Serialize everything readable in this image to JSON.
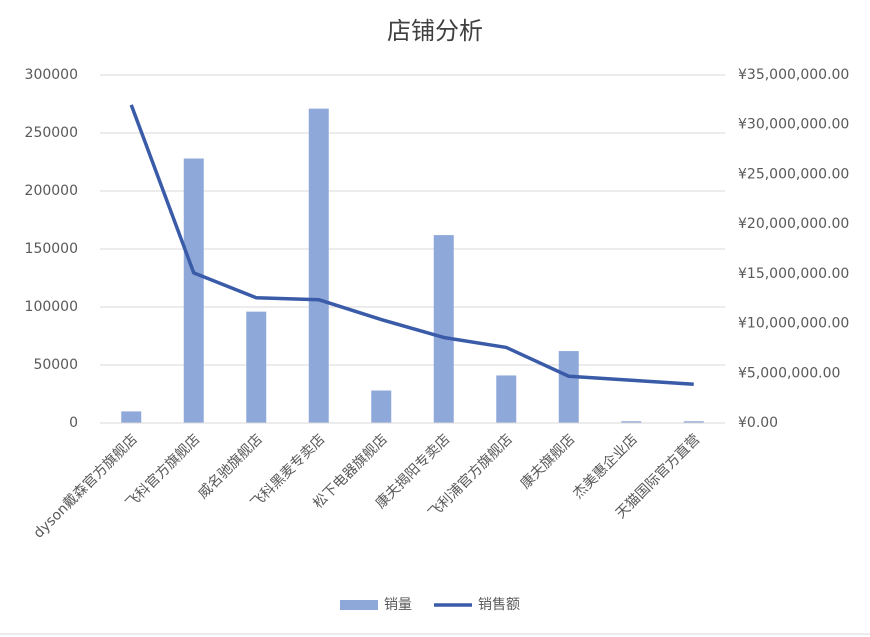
{
  "chart_data": {
    "type": "combo",
    "title": "店铺分析",
    "categories": [
      "dyson戴森官方旗舰店",
      "飞科官方旗舰店",
      "威名驰旗舰店",
      "飞科黑麦专卖店",
      "松下电器旗舰店",
      "康夫揭阳专卖店",
      "飞利浦官方旗舰店",
      "康夫旗舰店",
      "杰美惠企业店",
      "天猫国际官方直营"
    ],
    "series": [
      {
        "name": "销量",
        "type": "bar",
        "color": "#8fa8da",
        "values": [
          10000,
          228000,
          96000,
          271000,
          28000,
          162000,
          41000,
          62000,
          1500,
          1500
        ]
      },
      {
        "name": "销售额",
        "type": "line",
        "axis": "y2",
        "color": "#3a5ba8",
        "values": [
          32000000,
          15100000,
          12600000,
          12400000,
          10400000,
          8600000,
          7600000,
          4700000,
          4300000,
          3900000
        ]
      }
    ],
    "ylim": [
      0,
      300000
    ],
    "yticks": [
      0,
      50000,
      100000,
      150000,
      200000,
      250000,
      300000
    ],
    "y2lim": [
      0,
      35000000
    ],
    "y2ticks": [
      {
        "value": 0,
        "label": "¥0.00"
      },
      {
        "value": 5000000,
        "label": "¥5,000,000.00"
      },
      {
        "value": 10000000,
        "label": "¥10,000,000.00"
      },
      {
        "value": 15000000,
        "label": "¥15,000,000.00"
      },
      {
        "value": 20000000,
        "label": "¥20,000,000.00"
      },
      {
        "value": 25000000,
        "label": "¥25,000,000.00"
      },
      {
        "value": 30000000,
        "label": "¥30,000,000.00"
      },
      {
        "value": 35000000,
        "label": "¥35,000,000.00"
      }
    ],
    "grid": true,
    "legend": "bottom"
  }
}
